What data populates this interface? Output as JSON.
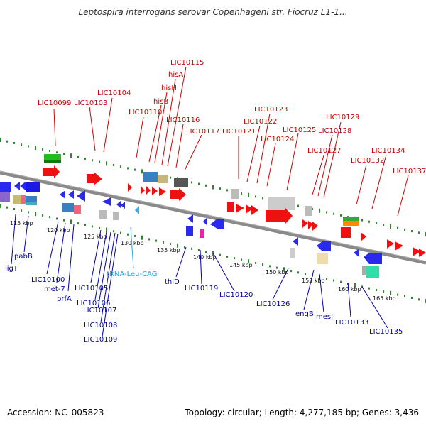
{
  "title": "Leptospira interrogans serovar Copenhageni str. Fiocruz L1-1...",
  "footer": {
    "accession": "Accession: NC_005823",
    "summary": "Topology: circular; Length: 4,277,185 bp; Genes: 3,436"
  },
  "colors": {
    "forward_label": "#cc0000",
    "reverse_label": "#0000aa",
    "rna_label": "#1aaadd",
    "tick": "#2a8a2a",
    "backbone": "#888888"
  },
  "scale": {
    "ticks": [
      "115 kbp",
      "120 kbp",
      "125 kbp",
      "130 kbp",
      "135 kbp",
      "140 kbp",
      "145 kbp",
      "150 kbp",
      "155 kbp",
      "160 kbp",
      "165 kbp"
    ]
  },
  "forward_labels": [
    "LIC10099",
    "LIC10103",
    "LIC10104",
    "LIC10110",
    "hisB",
    "hisH",
    "hisA",
    "LIC10115",
    "LIC10116",
    "LIC10117",
    "LIC10121",
    "LIC10122",
    "LIC10123",
    "LIC10124",
    "LIC10125",
    "LIC10127",
    "LIC10128",
    "LIC10129",
    "LIC10132",
    "LIC10134",
    "LIC10137"
  ],
  "reverse_labels": [
    "ligT",
    "pabB",
    "LIC10100",
    "met-7",
    "prfA",
    "LIC10105",
    "LIC10106",
    "LIC10107",
    "LIC10108",
    "LIC10109",
    "tRNA-Leu-CAG",
    "thiD",
    "LIC10119",
    "LIC10120",
    "LIC10126",
    "engB",
    "mesJ",
    "LIC10133",
    "LIC10135"
  ]
}
